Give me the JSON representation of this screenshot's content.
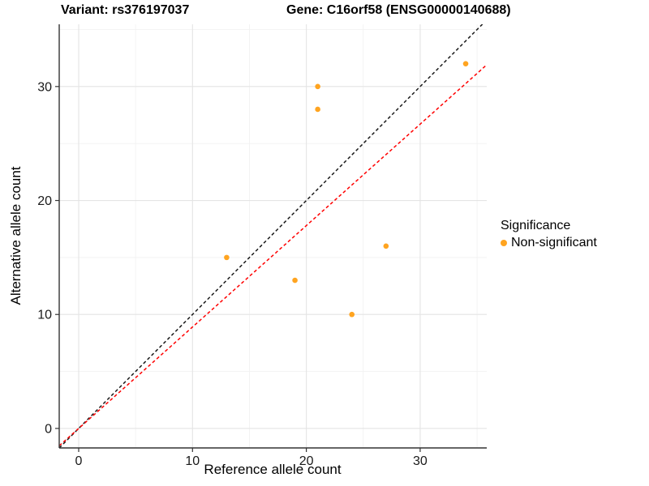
{
  "chart_data": {
    "type": "scatter",
    "title_left": "Variant: rs376197037",
    "title_right": "Gene: C16orf58 (ENSG00000140688)",
    "xlabel": "Reference allele count",
    "ylabel": "Alternative allele count",
    "xlim": [
      -1.71,
      35.85
    ],
    "ylim": [
      -1.71,
      35.46
    ],
    "x_ticks": [
      0,
      10,
      20,
      30
    ],
    "y_ticks": [
      0,
      10,
      20,
      30
    ],
    "x_minor_ticks": [
      5,
      15,
      25,
      35
    ],
    "y_minor_ticks": [
      5,
      15,
      25,
      35
    ],
    "grid": true,
    "points": [
      [
        13,
        15
      ],
      [
        19,
        13
      ],
      [
        21,
        28
      ],
      [
        21,
        30
      ],
      [
        24,
        10
      ],
      [
        27,
        16
      ],
      [
        34,
        32
      ]
    ],
    "point_color": "#FFA420",
    "lines": [
      {
        "name": "identity-line",
        "slope": 1.0,
        "intercept": 0,
        "color": "#1A1A1A",
        "dash": "4,3"
      },
      {
        "name": "expected-ratio-line",
        "slope": 0.89,
        "intercept": 0,
        "color": "#FF0000",
        "dash": "4,3"
      }
    ],
    "legend": {
      "position": "right",
      "title": "Significance",
      "items": [
        {
          "label": "Non-significant",
          "color": "#FFA420"
        }
      ]
    },
    "colors": {
      "grid_major": "#E4E4E4",
      "grid_minor": "#F2F2F2",
      "axis_line": "#333333",
      "tick_mark": "#333333",
      "tick_label": "#1A1A1A"
    }
  }
}
